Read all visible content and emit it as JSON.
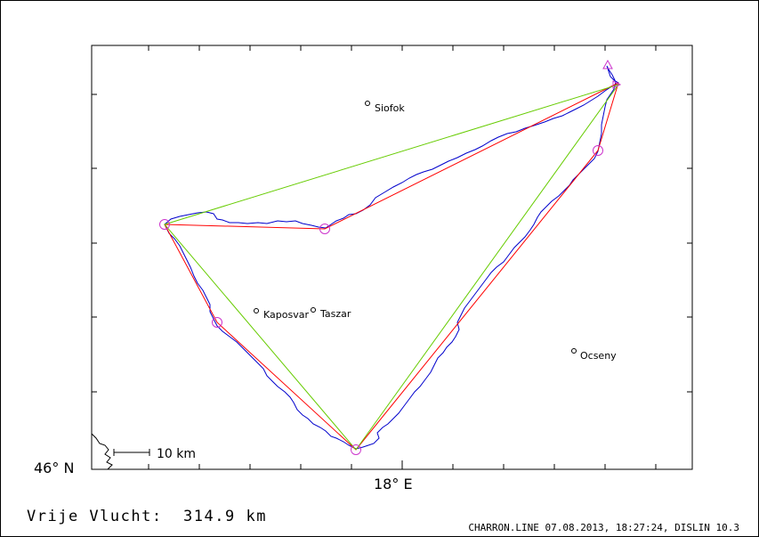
{
  "map": {
    "towns": [
      {
        "name": "Siofok"
      },
      {
        "name": "Kaposvar"
      },
      {
        "name": "Taszar"
      },
      {
        "name": "Ocseny"
      }
    ],
    "scale_label": "10 km",
    "lat_label": "46° N",
    "lon_label": "18° E"
  },
  "footer": {
    "distance_label": "Vrije Vlucht:",
    "distance_value": "314.9 km",
    "credit": "CHARRON.LINE 07.08.2013, 18:27:24, DISLIN 10.3"
  },
  "colors": {
    "track": "#0000cc",
    "route": "#ff0000",
    "triangle": "#66cc00",
    "turnpoint": "#cc33cc",
    "frame": "#000000"
  }
}
